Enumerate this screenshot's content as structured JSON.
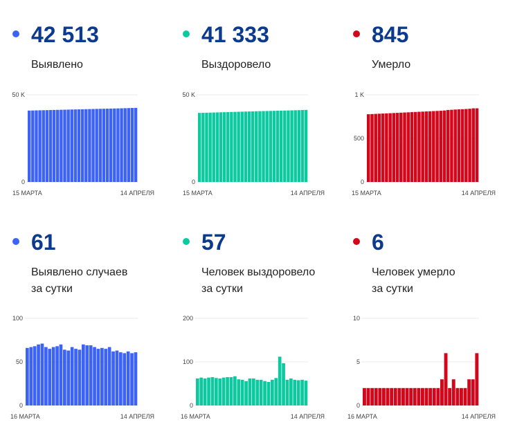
{
  "colors": {
    "detected": "#3d63f5",
    "recovered": "#0cc9a0",
    "died": "#d3071b",
    "number": "#0b3a8f"
  },
  "stats": [
    {
      "value": "42 513",
      "label_lines": [
        "Выявлено"
      ],
      "color": "#3d63f5"
    },
    {
      "value": "41 333",
      "label_lines": [
        "Выздоровело"
      ],
      "color": "#0cc9a0"
    },
    {
      "value": "845",
      "label_lines": [
        "Умерло"
      ],
      "color": "#d3071b"
    },
    {
      "value": "61",
      "label_lines": [
        "Выявлено случаев",
        "за сутки"
      ],
      "color": "#3d63f5"
    },
    {
      "value": "57",
      "label_lines": [
        "Человек выздоровело",
        "за сутки"
      ],
      "color": "#0cc9a0"
    },
    {
      "value": "6",
      "label_lines": [
        "Человек умерло",
        "за сутки"
      ],
      "color": "#d3071b"
    }
  ],
  "chart_data": [
    {
      "type": "bar",
      "title": "Выявлено",
      "color": "#3d63f5",
      "ylim": [
        0,
        50000
      ],
      "yticks": [
        {
          "v": 0,
          "label": "0"
        },
        {
          "v": 50000,
          "label": "50 K"
        }
      ],
      "x_start_label": "15 МАРТА",
      "x_end_label": "14 АПРЕЛЯ",
      "values": [
        40950,
        41000,
        41060,
        41110,
        41160,
        41210,
        41260,
        41310,
        41360,
        41410,
        41460,
        41510,
        41560,
        41610,
        41660,
        41710,
        41760,
        41810,
        41860,
        41910,
        41960,
        42000,
        42050,
        42100,
        42150,
        42200,
        42260,
        42320,
        42380,
        42450,
        42513
      ]
    },
    {
      "type": "bar",
      "title": "Выздоровело",
      "color": "#0cc9a0",
      "ylim": [
        0,
        50000
      ],
      "yticks": [
        {
          "v": 0,
          "label": "0"
        },
        {
          "v": 50000,
          "label": "50 K"
        }
      ],
      "x_start_label": "15 МАРТА",
      "x_end_label": "14 АПРЕЛЯ",
      "values": [
        39600,
        39660,
        39720,
        39780,
        39840,
        39900,
        39960,
        40020,
        40080,
        40140,
        40200,
        40260,
        40320,
        40380,
        40440,
        40500,
        40560,
        40610,
        40660,
        40710,
        40760,
        40810,
        40860,
        40910,
        40960,
        41010,
        41070,
        41130,
        41190,
        41276,
        41333
      ]
    },
    {
      "type": "bar",
      "title": "Умерло",
      "color": "#d3071b",
      "ylim": [
        0,
        1000
      ],
      "yticks": [
        {
          "v": 0,
          "label": "0"
        },
        {
          "v": 500,
          "label": "500"
        },
        {
          "v": 1000,
          "label": "1 K"
        }
      ],
      "x_start_label": "15 МАРТА",
      "x_end_label": "14 АПРЕЛЯ",
      "values": [
        777,
        779,
        781,
        783,
        785,
        787,
        789,
        791,
        793,
        795,
        797,
        799,
        801,
        803,
        805,
        807,
        809,
        811,
        813,
        815,
        817,
        820,
        826,
        828,
        831,
        833,
        835,
        837,
        840,
        845,
        845
      ]
    },
    {
      "type": "bar",
      "title": "Выявлено случаев за сутки",
      "color": "#3d63f5",
      "ylim": [
        0,
        100
      ],
      "yticks": [
        {
          "v": 0,
          "label": "0"
        },
        {
          "v": 50,
          "label": "50"
        },
        {
          "v": 100,
          "label": "100"
        }
      ],
      "x_start_label": "16 МАРТА",
      "x_end_label": "14 АПРЕЛЯ",
      "values": [
        66,
        67,
        68,
        70,
        71,
        67,
        65,
        67,
        68,
        70,
        64,
        63,
        67,
        65,
        64,
        70,
        69,
        69,
        67,
        65,
        66,
        65,
        67,
        62,
        63,
        61,
        60,
        62,
        60,
        61
      ]
    },
    {
      "type": "bar",
      "title": "Человек выздоровело за сутки",
      "color": "#0cc9a0",
      "ylim": [
        0,
        200
      ],
      "yticks": [
        {
          "v": 0,
          "label": "0"
        },
        {
          "v": 100,
          "label": "100"
        },
        {
          "v": 200,
          "label": "200"
        }
      ],
      "x_start_label": "16 МАРТА",
      "x_end_label": "14 АПРЕЛЯ",
      "values": [
        62,
        64,
        62,
        64,
        65,
        63,
        62,
        64,
        65,
        65,
        67,
        60,
        59,
        56,
        62,
        62,
        59,
        59,
        56,
        54,
        59,
        63,
        112,
        97,
        59,
        62,
        59,
        58,
        59,
        57
      ]
    },
    {
      "type": "bar",
      "title": "Человек умерло за сутки",
      "color": "#d3071b",
      "ylim": [
        0,
        10
      ],
      "yticks": [
        {
          "v": 0,
          "label": "0"
        },
        {
          "v": 5,
          "label": "5"
        },
        {
          "v": 10,
          "label": "10"
        }
      ],
      "x_start_label": "16 МАРТА",
      "x_end_label": "14 АПРЕЛЯ",
      "values": [
        2,
        2,
        2,
        2,
        2,
        2,
        2,
        2,
        2,
        2,
        2,
        2,
        2,
        2,
        2,
        2,
        2,
        2,
        2,
        2,
        3,
        6,
        2,
        3,
        2,
        2,
        2,
        3,
        3,
        6
      ]
    }
  ]
}
